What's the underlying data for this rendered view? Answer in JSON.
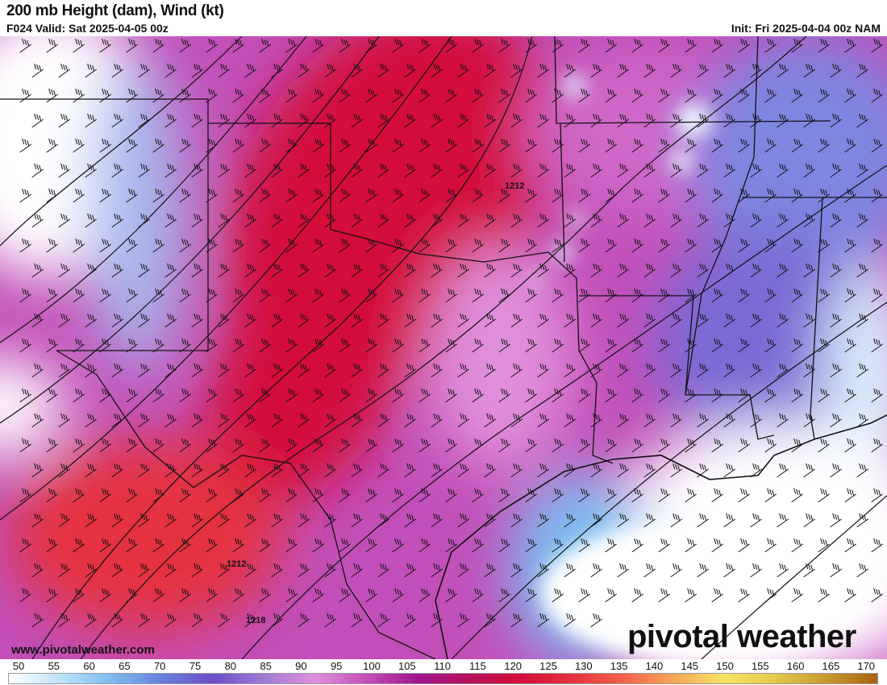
{
  "header": {
    "title": "200 mb Height (dam), Wind (kt)",
    "valid": "F024 Valid: Sat 2025-04-05 00z",
    "init": "Init: Fri 2025-04-04 00z NAM"
  },
  "map": {
    "contour_labels": [
      "1212",
      "1212",
      "1218"
    ]
  },
  "branding": {
    "url": "www.pivotalweather.com",
    "logo": "pivotal weather"
  },
  "colorbar": {
    "ticks": [
      "50",
      "55",
      "60",
      "65",
      "70",
      "75",
      "80",
      "85",
      "90",
      "95",
      "100",
      "105",
      "110",
      "115",
      "120",
      "125",
      "130",
      "135",
      "140",
      "145",
      "150",
      "155",
      "160",
      "165",
      "170"
    ],
    "colors": [
      "#ffffff",
      "#bfe3fb",
      "#7dbdf0",
      "#6a7fdc",
      "#6b4fc6",
      "#a27ad6",
      "#e08fdc",
      "#c24fb9",
      "#a0158f",
      "#b4105c",
      "#d40e3a",
      "#e4313f",
      "#f2614a",
      "#f6a55a",
      "#f7e463",
      "#e2c94c",
      "#c69a2f",
      "#a8620e"
    ]
  }
}
